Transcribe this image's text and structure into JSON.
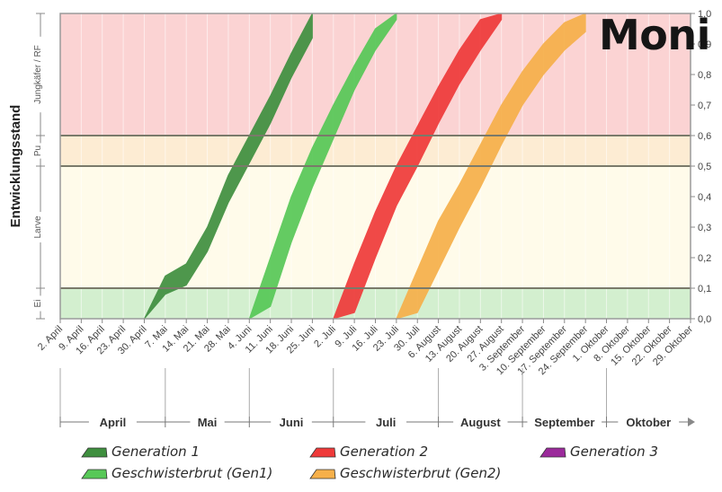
{
  "corner_title": "Moni",
  "chart_data": {
    "type": "area",
    "ylabel": "Entwicklungsstand",
    "ylim": [
      0,
      1
    ],
    "y_ticks": [
      "0,0",
      "0,1",
      "0,2",
      "0,3",
      "0,4",
      "0,5",
      "0,6",
      "0,7",
      "0,8",
      "0,9",
      "1,0"
    ],
    "x_dates": [
      "2. April",
      "9. April",
      "16. April",
      "23. April",
      "30. April",
      "7. Mai",
      "14. Mai",
      "21. Mai",
      "28. Mai",
      "4. Juni",
      "11. Juni",
      "18. Juni",
      "25. Juni",
      "2. Juli",
      "9. Juli",
      "16. Juli",
      "23. Juli",
      "30. Juli",
      "6. August",
      "13. August",
      "20. August",
      "27. August",
      "3. September",
      "10. September",
      "17. September",
      "24. September",
      "1. Oktober",
      "8. Oktober",
      "15. Oktober",
      "22. Oktober",
      "29. Oktober"
    ],
    "months": [
      "April",
      "Mai",
      "Juni",
      "Juli",
      "August",
      "September",
      "Oktober"
    ],
    "stages": [
      {
        "label": "Ei",
        "from": 0.0,
        "to": 0.1,
        "color": "#d3efcf"
      },
      {
        "label": "Larve",
        "from": 0.1,
        "to": 0.5,
        "color": "#fffbea"
      },
      {
        "label": "Pu",
        "from": 0.5,
        "to": 0.6,
        "color": "#fdecd3"
      },
      {
        "label": "Jungkäfer / RF",
        "from": 0.6,
        "to": 1.0,
        "color": "#fbd3d3"
      }
    ],
    "series": [
      {
        "name": "Generation 1",
        "color": "#3f8f3f",
        "x": [
          "30. April",
          "7. Mai",
          "14. Mai",
          "21. Mai",
          "28. Mai",
          "4. Juni",
          "11. Juni",
          "18. Juni",
          "25. Juni"
        ],
        "upper": [
          0.0,
          0.14,
          0.18,
          0.3,
          0.47,
          0.6,
          0.73,
          0.87,
          1.0
        ],
        "lower": [
          0.0,
          0.08,
          0.11,
          0.22,
          0.38,
          0.51,
          0.64,
          0.79,
          0.92
        ]
      },
      {
        "name": "Geschwisterbrut (Gen1)",
        "color": "#57c857",
        "x": [
          "4. Juni",
          "11. Juni",
          "18. Juni",
          "25. Juni",
          "2. Juli",
          "9. Juli",
          "16. Juli",
          "23. Juli"
        ],
        "upper": [
          0.0,
          0.2,
          0.4,
          0.56,
          0.7,
          0.83,
          0.95,
          1.0
        ],
        "lower": [
          0.0,
          0.04,
          0.25,
          0.43,
          0.59,
          0.75,
          0.88,
          0.98
        ]
      },
      {
        "name": "Generation 2",
        "color": "#ef3a3a",
        "x": [
          "2. Juli",
          "9. Juli",
          "16. Juli",
          "23. Juli",
          "30. Juli",
          "6. August",
          "13. August",
          "20. August",
          "27. August"
        ],
        "upper": [
          0.0,
          0.18,
          0.35,
          0.5,
          0.63,
          0.76,
          0.88,
          0.98,
          1.0
        ],
        "lower": [
          0.0,
          0.02,
          0.2,
          0.37,
          0.5,
          0.64,
          0.77,
          0.88,
          0.98
        ]
      },
      {
        "name": "Geschwisterbrut (Gen2)",
        "color": "#f6b04a",
        "x": [
          "23. Juli",
          "30. Juli",
          "6. August",
          "13. August",
          "20. August",
          "27. August",
          "3. September",
          "10. September",
          "17. September",
          "24. September"
        ],
        "upper": [
          0.0,
          0.16,
          0.32,
          0.44,
          0.57,
          0.7,
          0.81,
          0.9,
          0.97,
          1.0
        ],
        "lower": [
          0.0,
          0.02,
          0.16,
          0.3,
          0.43,
          0.57,
          0.7,
          0.8,
          0.88,
          0.94
        ]
      },
      {
        "name": "Generation 3",
        "color": "#9b2a9b",
        "x": [],
        "upper": [],
        "lower": []
      }
    ]
  }
}
